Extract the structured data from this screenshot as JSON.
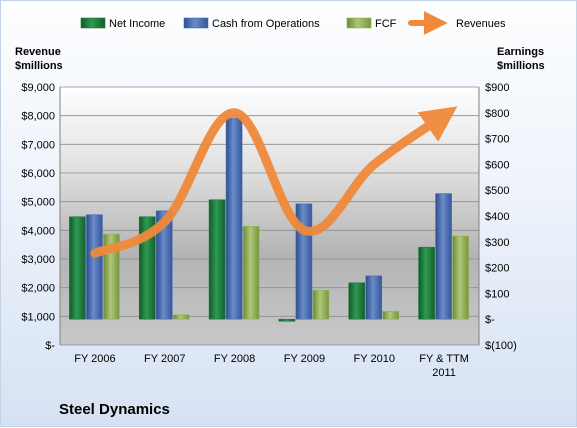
{
  "chart_data": {
    "type": "bar",
    "title": "Steel Dynamics",
    "categories": [
      "FY 2006",
      "FY 2007",
      "FY 2008",
      "FY 2009",
      "FY 2010",
      "FY & TTM 2011"
    ],
    "left_axis": {
      "title_lines": [
        "Revenue",
        "$millions"
      ],
      "range": [
        0,
        9000
      ],
      "ticks": [
        0,
        1000,
        2000,
        3000,
        4000,
        5000,
        6000,
        7000,
        8000,
        9000
      ],
      "tick_labels": [
        "$-",
        "$1,000",
        "$2,000",
        "$3,000",
        "$4,000",
        "$5,000",
        "$6,000",
        "$7,000",
        "$8,000",
        "$9,000"
      ]
    },
    "right_axis": {
      "title_lines": [
        "Earnings",
        "$millions"
      ],
      "range": [
        -100,
        900
      ],
      "ticks": [
        -100,
        0,
        100,
        200,
        300,
        400,
        500,
        600,
        700,
        800,
        900
      ],
      "tick_labels": [
        "$(100)",
        "$-",
        "$100",
        "$200",
        "$300",
        "$400",
        "$500",
        "$600",
        "$700",
        "$800",
        "$900"
      ]
    },
    "series": [
      {
        "name": "Net Income",
        "type": "bar",
        "axis": "right",
        "color": "#1f7a3c",
        "values": [
          397,
          397,
          463,
          -8,
          141,
          279
        ]
      },
      {
        "name": "Cash from Operations",
        "type": "bar",
        "axis": "right",
        "color": "#4a6fb5",
        "values": [
          405,
          420,
          780,
          447,
          168,
          487
        ]
      },
      {
        "name": "FCF",
        "type": "bar",
        "axis": "right",
        "color": "#93b159",
        "values": [
          330,
          17,
          360,
          112,
          30,
          322
        ]
      },
      {
        "name": "Revenues",
        "type": "line",
        "axis": "left",
        "color": "#f08a3a",
        "values": [
          3200,
          4300,
          8100,
          4000,
          6300,
          8000
        ]
      }
    ],
    "legend_position": "top",
    "grid": true
  }
}
